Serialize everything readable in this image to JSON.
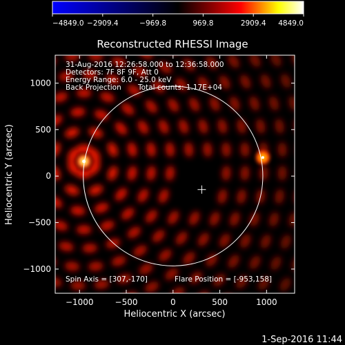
{
  "chart_data": {
    "type": "heatmap",
    "title": "Reconstructed RHESSI Image",
    "xlabel": "Heliocentric X (arcsec)",
    "ylabel": "Heliocentric Y (arcsec)",
    "xlim": [
      -1260,
      1300
    ],
    "ylim": [
      -1260,
      1300
    ],
    "x_ticks": [
      -1000,
      -500,
      0,
      500,
      1000
    ],
    "y_ticks": [
      -1000,
      -500,
      0,
      500,
      1000
    ],
    "colorbar": {
      "min": -4849.0,
      "max": 4849.0,
      "ticks": [
        -4849.0,
        -2909.4,
        -969.8,
        969.8,
        2909.4,
        4849.0
      ],
      "tick_labels": [
        "−4849.0",
        "−2909.4",
        "−969.8",
        "969.8",
        "2909.4",
        "4849.0"
      ],
      "colormap": [
        "#0000ff",
        "#000000",
        "#ff0000",
        "#ffff00",
        "#ffffff"
      ]
    },
    "annotations": [
      "31-Aug-2016 12:26:58.000 to 12:36:58.000",
      "Detectors: 7F 8F 9F, Att 0",
      "Energy Range: 6.0 - 25.0 keV",
      "Back Projection",
      "Total counts: 1.17E+04"
    ],
    "spin_axis": "Spin Axis = [307,-170]",
    "flare_position": "Flare Position = [-953,158]",
    "solar_disk": {
      "center": [
        0,
        0
      ],
      "radius": 960
    },
    "center_marker": [
      307,
      -170
    ],
    "bright_sources": [
      {
        "x": -953,
        "y": 158,
        "value": 4849
      },
      {
        "x": 960,
        "y": 200,
        "value": 3900
      }
    ],
    "grid": false
  },
  "footer_timestamp": "1-Sep-2016 11:44"
}
